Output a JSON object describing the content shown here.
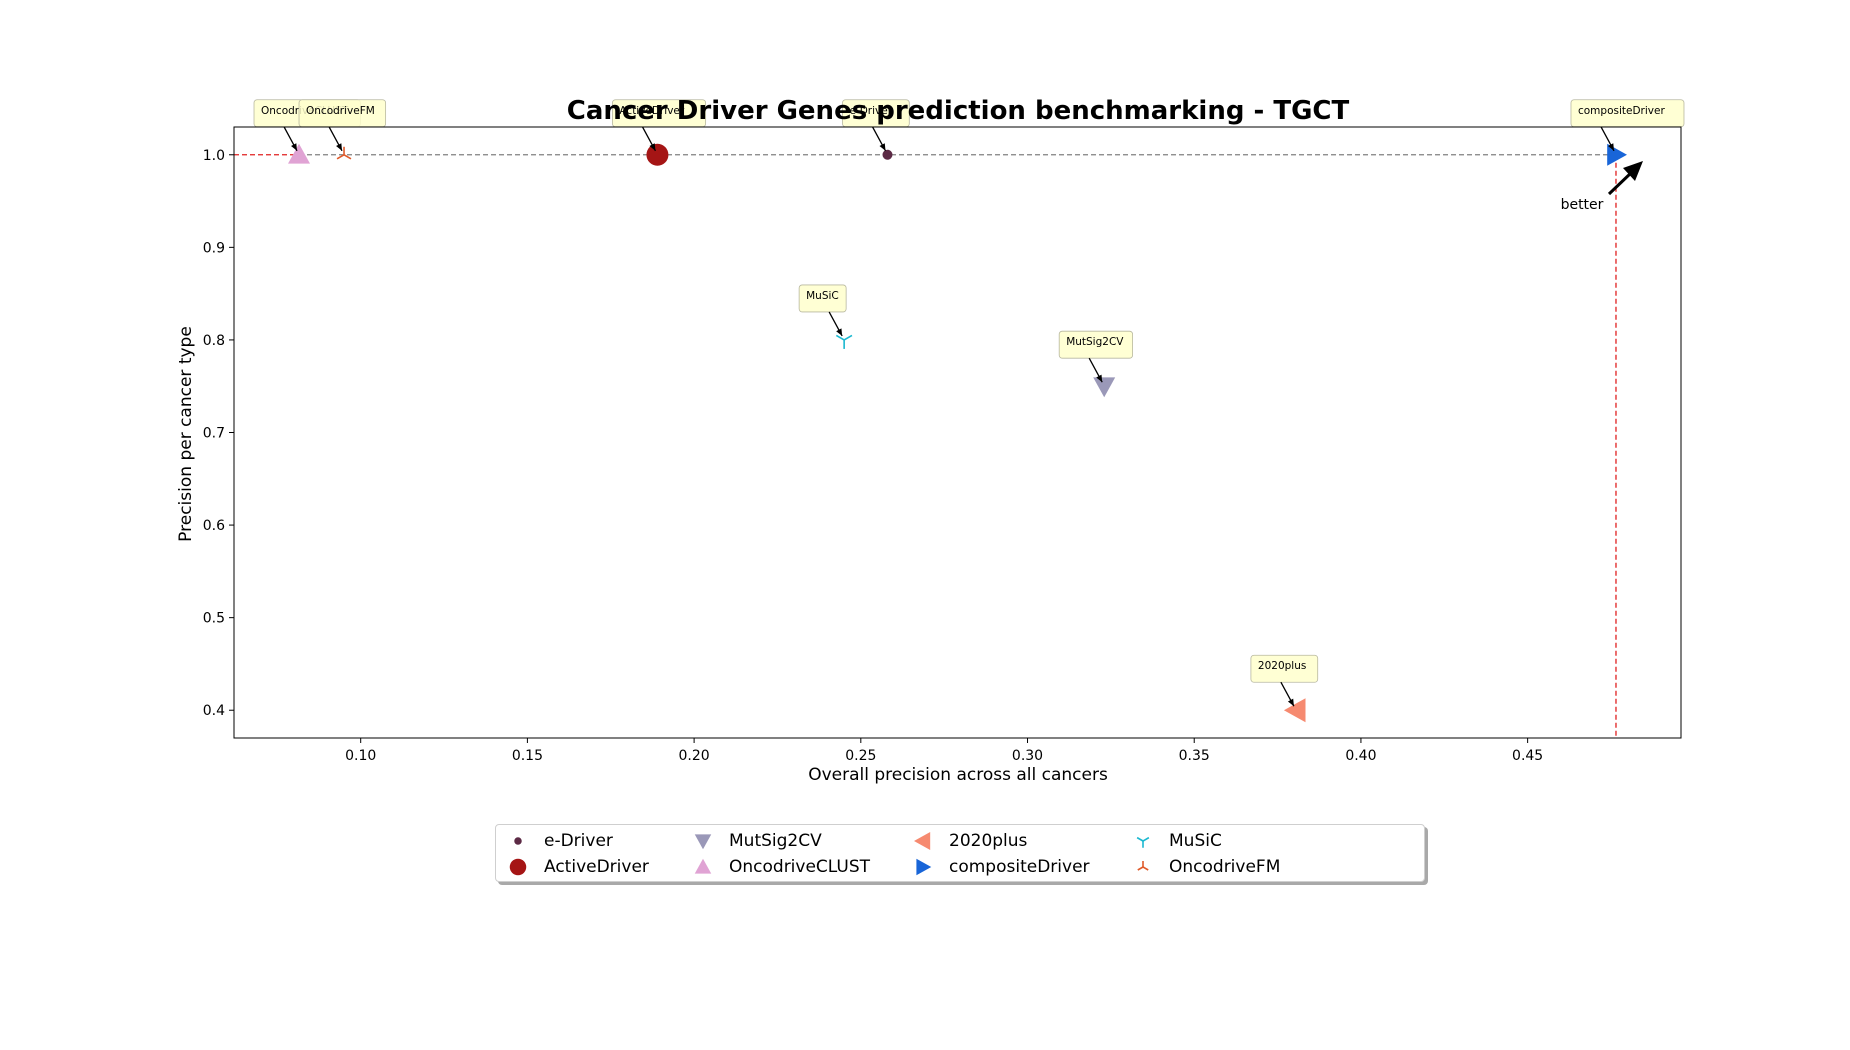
{
  "chart_data": {
    "type": "scatter",
    "title": "Cancer Driver Genes prediction benchmarking - TGCT",
    "xlabel": "Overall precision across all cancers",
    "ylabel": "Precision per cancer type",
    "xlim": [
      0.062,
      0.496
    ],
    "ylim": [
      0.37,
      1.03
    ],
    "xticks": [
      "0.10",
      "0.15",
      "0.20",
      "0.25",
      "0.30",
      "0.35",
      "0.40",
      "0.45"
    ],
    "yticks": [
      "0.4",
      "0.5",
      "0.6",
      "0.7",
      "0.8",
      "0.9",
      "1.0"
    ],
    "better_label": "better",
    "reference_lines": {
      "best_x": 0.4765,
      "best_y": 1.0
    },
    "series": [
      {
        "name": "e-Driver",
        "x": 0.258,
        "y": 1.0,
        "marker": "point",
        "color": "#5c2a45",
        "annotation": "e-Driver"
      },
      {
        "name": "ActiveDriver",
        "x": 0.189,
        "y": 1.0,
        "marker": "circle",
        "color": "#a51515",
        "annotation": "ActiveDriver"
      },
      {
        "name": "MutSig2CV",
        "x": 0.323,
        "y": 0.75,
        "marker": "triangle-down",
        "color": "#9a98b8",
        "annotation": "MutSig2CV"
      },
      {
        "name": "OncodriveCLUST",
        "x": 0.0815,
        "y": 1.0,
        "marker": "triangle-up",
        "color": "#e0a3d4",
        "annotation": "OncodriveCLUST"
      },
      {
        "name": "2020plus",
        "x": 0.3805,
        "y": 0.4,
        "marker": "triangle-left",
        "color": "#f68a70",
        "annotation": "2020plus"
      },
      {
        "name": "compositeDriver",
        "x": 0.4765,
        "y": 1.0,
        "marker": "triangle-right",
        "color": "#1865d8",
        "annotation": "compositeDriver"
      },
      {
        "name": "MuSiC",
        "x": 0.245,
        "y": 0.8,
        "marker": "tri-down",
        "color": "#1bb8d0",
        "annotation": "MuSiC"
      },
      {
        "name": "OncodriveFM",
        "x": 0.095,
        "y": 1.0,
        "marker": "tri-up",
        "color": "#e05a2a",
        "annotation": "OncodriveFM"
      }
    ],
    "legend_position": "bottom-center",
    "grid": false
  }
}
